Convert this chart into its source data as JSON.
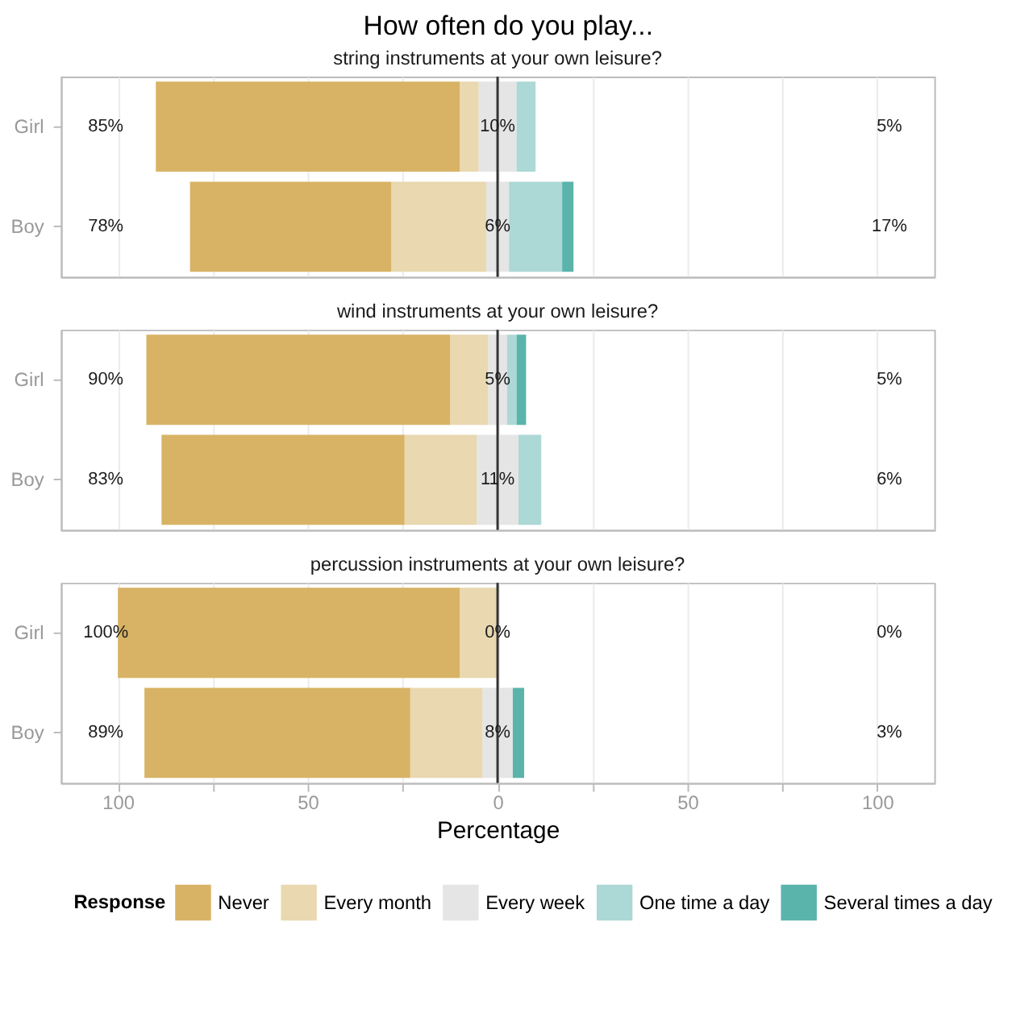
{
  "chart_data": [
    {
      "type": "bar",
      "orientation": "horizontal",
      "stacked": true,
      "title": "How often do you play...",
      "subtitle": "string instruments at your own leisure?",
      "categories": [
        "Girl",
        "Boy"
      ],
      "series": [
        {
          "color": "#e5e5e5",
          "values": [
            -5,
            -3
          ]
        },
        {
          "color": "#e9d8b0",
          "values": [
            -5,
            -25
          ]
        },
        {
          "color": "#d8b365",
          "values": [
            -80,
            -53
          ]
        },
        {
          "color": "#e5e5e5",
          "values": [
            5,
            3
          ]
        },
        {
          "color": "#acd8d6",
          "values": [
            5,
            14
          ]
        },
        {
          "color": "#5ab4ac",
          "values": [
            0,
            3
          ]
        }
      ],
      "annotations": [
        "85%",
        "78%",
        "10%",
        "6%",
        "5%",
        "17%"
      ],
      "xlim": [
        -115,
        115
      ],
      "xticks": [
        -100,
        -75,
        -50,
        -25,
        0,
        25,
        50,
        75,
        100
      ],
      "ref_lines": [
        {
          "axis": "x",
          "value": 0,
          "color": "#333333"
        }
      ],
      "grid": "x",
      "tick_labels": "y",
      "legend": false
    },
    {
      "type": "bar",
      "orientation": "horizontal",
      "stacked": true,
      "subtitle": "wind instruments at your own leisure?",
      "categories": [
        "Girl",
        "Boy"
      ],
      "series": [
        {
          "color": "#e5e5e5",
          "values": [
            -2.5,
            -5.5
          ]
        },
        {
          "color": "#e9d8b0",
          "values": [
            -10,
            -19
          ]
        },
        {
          "color": "#d8b365",
          "values": [
            -80,
            -64
          ]
        },
        {
          "color": "#e5e5e5",
          "values": [
            2.5,
            5.5
          ]
        },
        {
          "color": "#acd8d6",
          "values": [
            2.5,
            6
          ]
        },
        {
          "color": "#5ab4ac",
          "values": [
            2.5,
            0
          ]
        }
      ],
      "annotations": [
        "90%",
        "83%",
        "5%",
        "11%",
        "5%",
        "6%"
      ],
      "xlim": [
        -115,
        115
      ],
      "xticks": [
        -100,
        -75,
        -50,
        -25,
        0,
        25,
        50,
        75,
        100
      ],
      "ref_lines": [
        {
          "axis": "x",
          "value": 0,
          "color": "#333333"
        }
      ],
      "grid": "x",
      "tick_labels": "y",
      "legend": false
    },
    {
      "type": "bar",
      "orientation": "horizontal",
      "stacked": true,
      "subtitle": "percussion instruments at your own leisure?",
      "categories": [
        "Girl",
        "Boy"
      ],
      "xlabel": "Percentage",
      "legend_title": "Response",
      "series": [
        {
          "color": "#e5e5e5",
          "values": [
            0,
            -4
          ]
        },
        {
          "name": "Every month",
          "color": "#e9d8b0",
          "values": [
            -10,
            -19
          ]
        },
        {
          "name": "Never",
          "color": "#d8b365",
          "values": [
            -90,
            -70
          ]
        },
        {
          "name": "Every week",
          "color": "#e5e5e5",
          "values": [
            0,
            4
          ]
        },
        {
          "name": "One time a day",
          "color": "#acd8d6",
          "values": [
            0,
            0
          ]
        },
        {
          "name": "Several times a day",
          "color": "#5ab4ac",
          "values": [
            0,
            3
          ]
        }
      ],
      "annotations": [
        "100%",
        "89%",
        "0%",
        "8%",
        "0%",
        "3%"
      ],
      "xlim": [
        -115,
        115
      ],
      "xticks": [
        {
          "value": -100,
          "label": "100"
        },
        {
          "value": -75,
          "label": null
        },
        {
          "value": -50,
          "label": "50"
        },
        {
          "value": -25,
          "label": null
        },
        0,
        {
          "value": 25,
          "label": null
        },
        50,
        {
          "value": 75,
          "label": null
        },
        100
      ],
      "ref_lines": [
        {
          "axis": "x",
          "value": 0,
          "color": "#333333"
        }
      ],
      "grid": "x",
      "legend": "bottom"
    }
  ]
}
